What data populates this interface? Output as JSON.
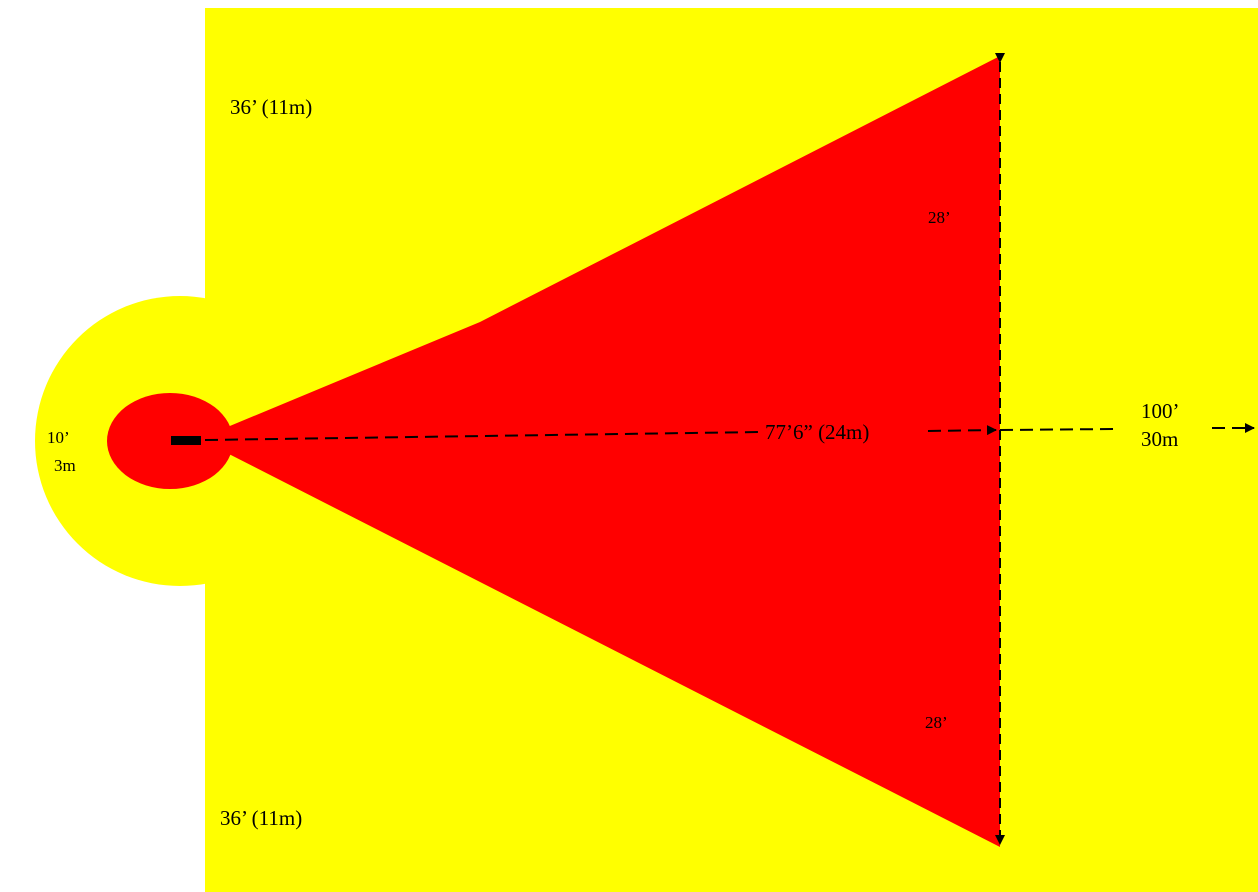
{
  "diagram": {
    "colors": {
      "background": "#ffffff",
      "outer_zone": "#ffff00",
      "inner_zone": "#ff0000",
      "lines": "#000000"
    },
    "labels": {
      "top_side": "36’ (11m)",
      "bottom_side": "36’ (11m)",
      "upper_half_width": "28’",
      "lower_half_width": "28’",
      "cone_length": "77’6” (24m)",
      "outer_range_ft": "100’",
      "outer_range_m": "30m",
      "rear_radius_ft": "10’",
      "rear_radius_m": "3m"
    }
  }
}
